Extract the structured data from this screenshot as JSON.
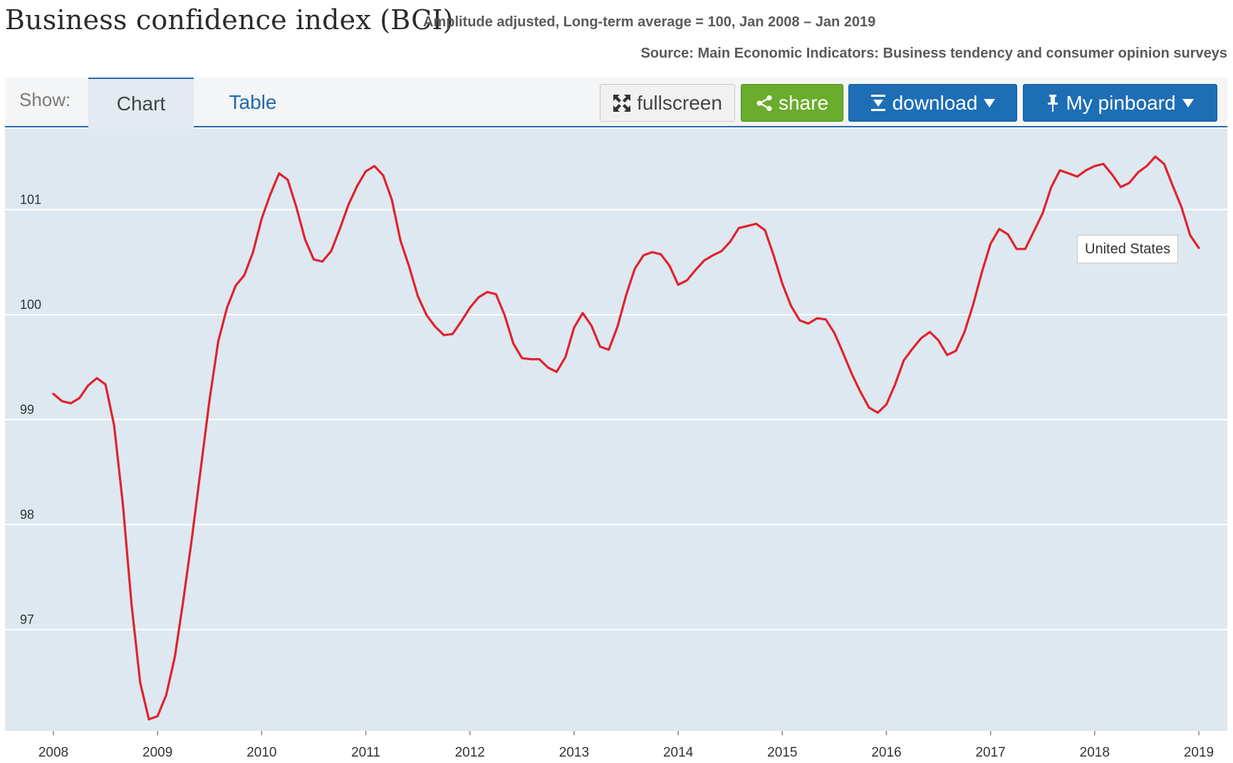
{
  "header": {
    "title": "Business confidence index (BCI)",
    "subtitle": "Amplitude adjusted, Long-term average = 100, Jan 2008 – Jan 2019",
    "source": "Source: Main Economic Indicators: Business tendency and consumer opinion surveys"
  },
  "toolbar": {
    "show_label": "Show:",
    "tabs": [
      {
        "label": "Chart",
        "active": true
      },
      {
        "label": "Table",
        "active": false
      }
    ],
    "fullscreen_label": "fullscreen",
    "share_label": "share",
    "download_label": "download",
    "pinboard_label": "My pinboard"
  },
  "colors": {
    "line": "#e0232e",
    "plot_background": "#dde8f0",
    "share": "#6aac2c",
    "primary_button": "#1d6eb5"
  },
  "chart_data": {
    "type": "line",
    "title": "",
    "xlabel": "",
    "ylabel": "",
    "ylim": [
      95.8,
      101.6
    ],
    "xlim": [
      2008.0,
      2019.0
    ],
    "yticks": [
      "97",
      "98",
      "99",
      "100",
      "101"
    ],
    "xticks": [
      "2008",
      "2009",
      "2010",
      "2011",
      "2012",
      "2013",
      "2014",
      "2015",
      "2016",
      "2017",
      "2018",
      "2019"
    ],
    "grid": true,
    "series": [
      {
        "name": "United States",
        "x": [
          2008.0,
          2008.083,
          2008.167,
          2008.25,
          2008.333,
          2008.417,
          2008.5,
          2008.583,
          2008.667,
          2008.75,
          2008.833,
          2008.917,
          2009.0,
          2009.083,
          2009.167,
          2009.25,
          2009.333,
          2009.417,
          2009.5,
          2009.583,
          2009.667,
          2009.75,
          2009.833,
          2009.917,
          2010.0,
          2010.083,
          2010.167,
          2010.25,
          2010.333,
          2010.417,
          2010.5,
          2010.583,
          2010.667,
          2010.75,
          2010.833,
          2010.917,
          2011.0,
          2011.083,
          2011.167,
          2011.25,
          2011.333,
          2011.417,
          2011.5,
          2011.583,
          2011.667,
          2011.75,
          2011.833,
          2011.917,
          2012.0,
          2012.083,
          2012.167,
          2012.25,
          2012.333,
          2012.417,
          2012.5,
          2012.583,
          2012.667,
          2012.75,
          2012.833,
          2012.917,
          2013.0,
          2013.083,
          2013.167,
          2013.25,
          2013.333,
          2013.417,
          2013.5,
          2013.583,
          2013.667,
          2013.75,
          2013.833,
          2013.917,
          2014.0,
          2014.083,
          2014.167,
          2014.25,
          2014.333,
          2014.417,
          2014.5,
          2014.583,
          2014.667,
          2014.75,
          2014.833,
          2014.917,
          2015.0,
          2015.083,
          2015.167,
          2015.25,
          2015.333,
          2015.417,
          2015.5,
          2015.583,
          2015.667,
          2015.75,
          2015.833,
          2015.917,
          2016.0,
          2016.083,
          2016.167,
          2016.25,
          2016.333,
          2016.417,
          2016.5,
          2016.583,
          2016.667,
          2016.75,
          2016.833,
          2016.917,
          2017.0,
          2017.083,
          2017.167,
          2017.25,
          2017.333,
          2017.417,
          2017.5,
          2017.583,
          2017.667,
          2017.75,
          2017.833,
          2017.917,
          2018.0,
          2018.083,
          2018.167,
          2018.25,
          2018.333,
          2018.417,
          2018.5,
          2018.583,
          2018.667,
          2018.75,
          2018.833,
          2018.917,
          2019.0
        ],
        "y": [
          99.15,
          99.08,
          99.06,
          99.11,
          99.23,
          99.3,
          99.24,
          98.85,
          98.1,
          97.15,
          96.4,
          96.05,
          96.08,
          96.28,
          96.65,
          97.2,
          97.8,
          98.45,
          99.1,
          99.65,
          99.97,
          100.18,
          100.28,
          100.5,
          100.82,
          101.05,
          101.25,
          101.19,
          100.93,
          100.62,
          100.43,
          100.41,
          100.51,
          100.72,
          100.95,
          101.13,
          101.27,
          101.32,
          101.23,
          101.0,
          100.61,
          100.36,
          100.08,
          99.9,
          99.79,
          99.71,
          99.72,
          99.84,
          99.97,
          100.07,
          100.12,
          100.1,
          99.9,
          99.63,
          99.49,
          99.48,
          99.48,
          99.4,
          99.36,
          99.5,
          99.78,
          99.92,
          99.8,
          99.6,
          99.57,
          99.79,
          100.09,
          100.34,
          100.47,
          100.5,
          100.48,
          100.37,
          100.19,
          100.23,
          100.33,
          100.42,
          100.47,
          100.51,
          100.6,
          100.73,
          100.75,
          100.77,
          100.71,
          100.47,
          100.2,
          99.99,
          99.85,
          99.82,
          99.87,
          99.86,
          99.73,
          99.54,
          99.34,
          99.17,
          99.02,
          98.97,
          99.05,
          99.24,
          99.47,
          99.58,
          99.68,
          99.74,
          99.66,
          99.52,
          99.56,
          99.74,
          100.0,
          100.31,
          100.58,
          100.72,
          100.67,
          100.53,
          100.53,
          100.7,
          100.87,
          101.12,
          101.28,
          101.25,
          101.22,
          101.28,
          101.32,
          101.34,
          101.24,
          101.12,
          101.16,
          101.26,
          101.32,
          101.41,
          101.34,
          101.13,
          100.93,
          100.66,
          100.54
        ]
      }
    ]
  }
}
